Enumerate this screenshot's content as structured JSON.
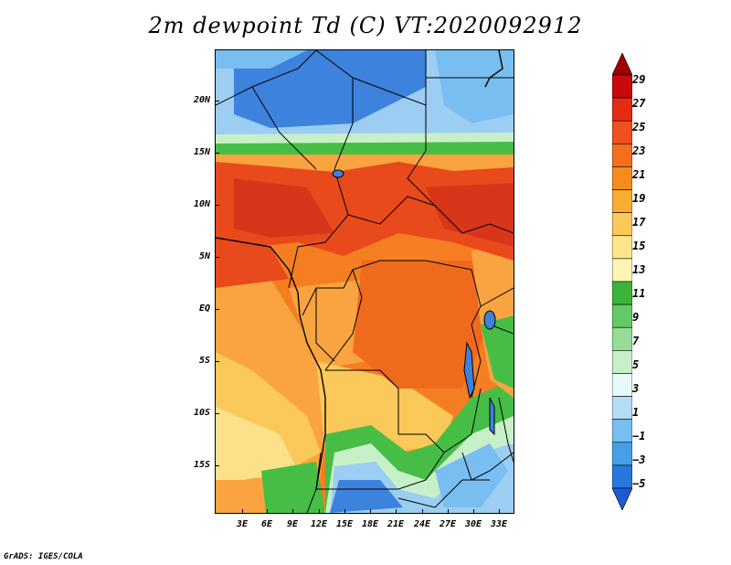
{
  "title": "2m dewpoint Td (C) VT:2020092912",
  "credit": "GrADS: IGES/COLA",
  "axes": {
    "lat_labels": [
      "20N",
      "15N",
      "10N",
      "5N",
      "EQ",
      "5S",
      "10S",
      "15S"
    ],
    "lon_labels": [
      "3E",
      "6E",
      "9E",
      "12E",
      "15E",
      "18E",
      "21E",
      "24E",
      "27E",
      "30E",
      "33E"
    ]
  },
  "colorbar": {
    "labels": [
      "29",
      "27",
      "25",
      "23",
      "21",
      "19",
      "17",
      "15",
      "13",
      "11",
      "9",
      "7",
      "5",
      "3",
      "1",
      "−1",
      "−3",
      "−5"
    ],
    "colors": [
      "#a00000",
      "#c80a0a",
      "#e42c14",
      "#f0501e",
      "#f56e1e",
      "#f78c1e",
      "#f9ac32",
      "#fbc85a",
      "#fde68c",
      "#fff6b4",
      "#3cb43c",
      "#64c864",
      "#96dc96",
      "#c8f0c8",
      "#e6fafa",
      "#b4dcf5",
      "#78bef0",
      "#46a0e6",
      "#2878dc",
      "#1e5ad2"
    ]
  },
  "legend_colors": {
    "dark_red": "#c80a0a",
    "red_orange": "#e84a1c",
    "orange": "#f57e22",
    "light_orange": "#f9a440",
    "yellow": "#fde18a",
    "green": "#46be46",
    "light_blue": "#9ccdf2",
    "blue": "#3d82dc"
  }
}
